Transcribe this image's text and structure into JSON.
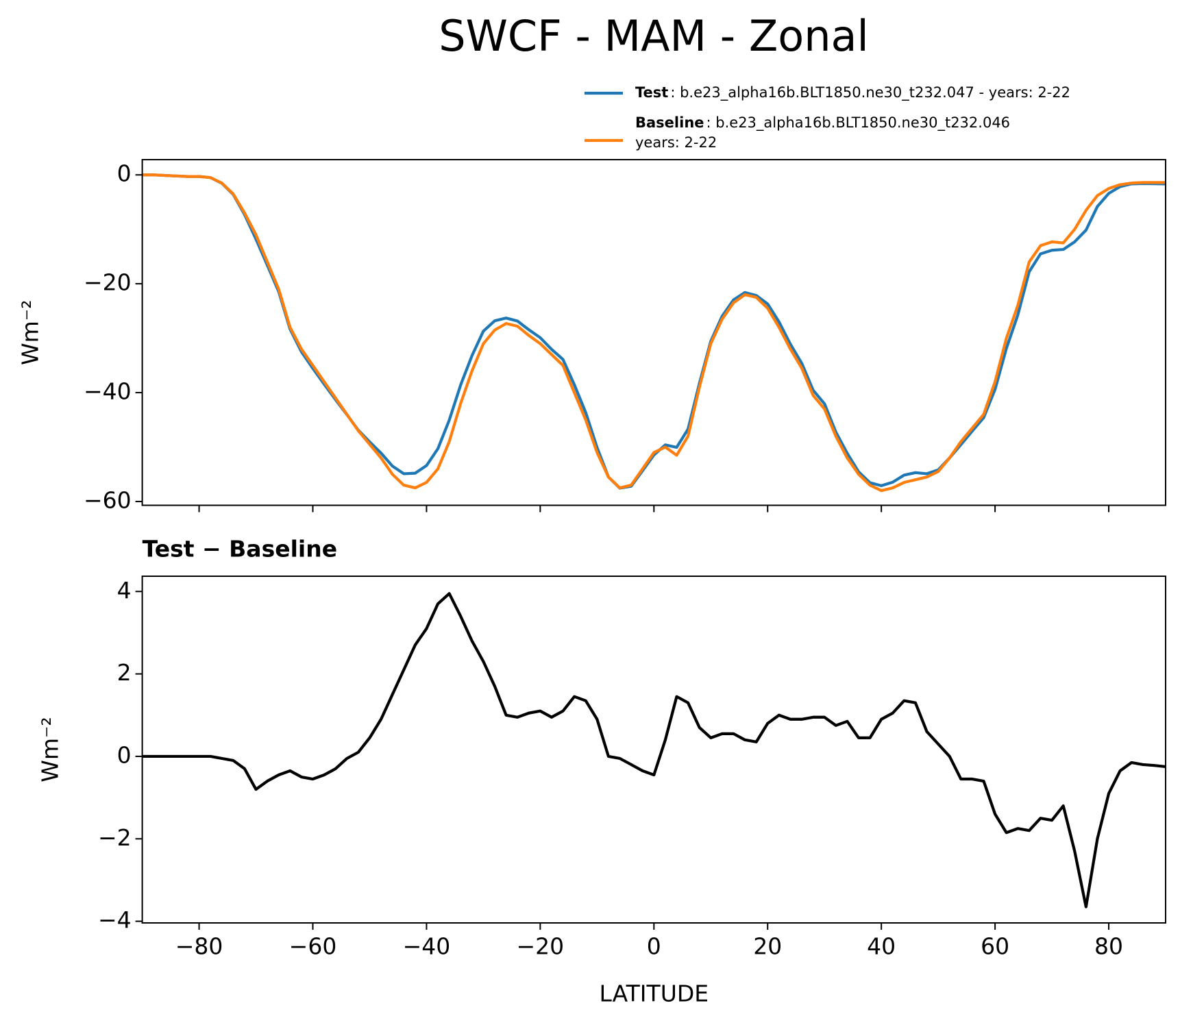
{
  "title": "SWCF - MAM - Zonal",
  "chart_data": [
    {
      "type": "line",
      "ylabel": "Wm⁻²",
      "x": [
        -90,
        -88,
        -86,
        -84,
        -82,
        -80,
        -78,
        -76,
        -74,
        -72,
        -70,
        -68,
        -66,
        -64,
        -62,
        -60,
        -58,
        -56,
        -54,
        -52,
        -50,
        -48,
        -46,
        -44,
        -42,
        -40,
        -38,
        -36,
        -34,
        -32,
        -30,
        -28,
        -26,
        -24,
        -22,
        -20,
        -18,
        -16,
        -14,
        -12,
        -10,
        -8,
        -6,
        -4,
        -2,
        0,
        2,
        4,
        6,
        8,
        10,
        12,
        14,
        16,
        18,
        20,
        22,
        24,
        26,
        28,
        30,
        32,
        34,
        36,
        38,
        40,
        42,
        44,
        46,
        48,
        50,
        52,
        54,
        56,
        58,
        60,
        62,
        64,
        66,
        68,
        70,
        72,
        74,
        76,
        78,
        80,
        82,
        84,
        86,
        88,
        90
      ],
      "series": [
        {
          "name": "Test",
          "description": [
            ": b.e23_alpha16b.BLT1850.ne30_t232.047 - years: 2-22"
          ],
          "color": "#1f77b4",
          "values": [
            0,
            0,
            -0.1,
            -0.2,
            -0.3,
            -0.3,
            -0.5,
            -1.55,
            -3.6,
            -7.3,
            -11.8,
            -16.6,
            -21.45,
            -28.35,
            -32.5,
            -35.55,
            -38.45,
            -41.3,
            -44.05,
            -46.9,
            -49.05,
            -51.1,
            -53.5,
            -54.9,
            -54.8,
            -53.4,
            -50.3,
            -45.05,
            -38.6,
            -33.2,
            -28.7,
            -26.8,
            -26.3,
            -26.85,
            -28.45,
            -29.9,
            -32.05,
            -33.9,
            -38.55,
            -43.65,
            -50.1,
            -55.5,
            -57.55,
            -57.2,
            -54.35,
            -51.45,
            -49.6,
            -50.05,
            -46.7,
            -38.3,
            -30.55,
            -25.95,
            -22.95,
            -21.6,
            -22.15,
            -23.7,
            -27,
            -31.1,
            -34.6,
            -39.55,
            -42.05,
            -47.25,
            -51.15,
            -54.55,
            -56.55,
            -57.1,
            -56.45,
            -55.15,
            -54.7,
            -54.9,
            -54.2,
            -52,
            -49.55,
            -47.05,
            -44.6,
            -39.4,
            -31.85,
            -25.75,
            -17.8,
            -14.5,
            -13.85,
            -13.7,
            -12.3,
            -10.15,
            -5.8,
            -3.4,
            -2.15,
            -1.65,
            -1.6,
            -1.62,
            -1.65
          ]
        },
        {
          "name": "Baseline",
          "description": [
            ": b.e23_alpha16b.BLT1850.ne30_t232.046",
            "years: 2-22"
          ],
          "color": "#ff7f0e",
          "values": [
            0,
            0,
            -0.1,
            -0.2,
            -0.3,
            -0.3,
            -0.5,
            -1.5,
            -3.5,
            -7,
            -11,
            -16,
            -21,
            -28,
            -32,
            -35,
            -38,
            -41,
            -44,
            -47,
            -49.5,
            -52,
            -55,
            -57,
            -57.5,
            -56.5,
            -54,
            -49,
            -42,
            -36,
            -31,
            -28.5,
            -27.3,
            -27.8,
            -29.5,
            -31,
            -33,
            -35,
            -40,
            -45,
            -51,
            -55.5,
            -57.5,
            -57,
            -54,
            -51,
            -50,
            -51.5,
            -48,
            -39,
            -31,
            -26.5,
            -23.5,
            -22,
            -22.5,
            -24.5,
            -28,
            -32,
            -35.5,
            -40.5,
            -43,
            -48,
            -52,
            -55,
            -57,
            -58,
            -57.5,
            -56.5,
            -56,
            -55.5,
            -54.5,
            -52,
            -49,
            -46.5,
            -44,
            -38,
            -30,
            -24,
            -16,
            -13,
            -12.3,
            -12.5,
            -10,
            -6.5,
            -3.8,
            -2.5,
            -1.8,
            -1.5,
            -1.4,
            -1.4,
            -1.4
          ]
        }
      ],
      "xlim": [
        -90,
        90
      ],
      "xticks": [
        -80,
        -60,
        -40,
        -20,
        0,
        20,
        40,
        60,
        80
      ],
      "ylim": [
        -60.7,
        2.8
      ],
      "yticks": [
        0,
        {
          "value": -20,
          "label": "−20"
        },
        {
          "value": -40,
          "label": "−40"
        },
        {
          "value": -60,
          "label": "−60"
        }
      ],
      "legend": "upper right",
      "grid": false
    },
    {
      "type": "line",
      "title": "Test − Baseline",
      "xlabel": "LATITUDE",
      "ylabel": "Wm⁻²",
      "x": [
        -90,
        -88,
        -86,
        -84,
        -82,
        -80,
        -78,
        -76,
        -74,
        -72,
        -70,
        -68,
        -66,
        -64,
        -62,
        -60,
        -58,
        -56,
        -54,
        -52,
        -50,
        -48,
        -46,
        -44,
        -42,
        -40,
        -38,
        -36,
        -34,
        -32,
        -30,
        -28,
        -26,
        -24,
        -22,
        -20,
        -18,
        -16,
        -14,
        -12,
        -10,
        -8,
        -6,
        -4,
        -2,
        0,
        2,
        4,
        6,
        8,
        10,
        12,
        14,
        16,
        18,
        20,
        22,
        24,
        26,
        28,
        30,
        32,
        34,
        36,
        38,
        40,
        42,
        44,
        46,
        48,
        50,
        52,
        54,
        56,
        58,
        60,
        62,
        64,
        66,
        68,
        70,
        72,
        74,
        76,
        78,
        80,
        82,
        84,
        86,
        88,
        90
      ],
      "series": [
        {
          "color": "#000000",
          "values": [
            0,
            0,
            0,
            0,
            0,
            0,
            0,
            -0.05,
            -0.1,
            -0.3,
            -0.8,
            -0.6,
            -0.45,
            -0.35,
            -0.5,
            -0.55,
            -0.45,
            -0.3,
            -0.05,
            0.1,
            0.45,
            0.9,
            1.5,
            2.1,
            2.7,
            3.1,
            3.7,
            3.95,
            3.4,
            2.8,
            2.3,
            1.7,
            1.0,
            0.95,
            1.05,
            1.1,
            0.95,
            1.1,
            1.45,
            1.35,
            0.9,
            0.0,
            -0.05,
            -0.2,
            -0.35,
            -0.45,
            0.4,
            1.45,
            1.3,
            0.7,
            0.45,
            0.55,
            0.55,
            0.4,
            0.35,
            0.8,
            1.0,
            0.9,
            0.9,
            0.95,
            0.95,
            0.75,
            0.85,
            0.45,
            0.45,
            0.9,
            1.05,
            1.35,
            1.3,
            0.6,
            0.3,
            0.0,
            -0.55,
            -0.55,
            -0.6,
            -1.4,
            -1.85,
            -1.75,
            -1.8,
            -1.5,
            -1.55,
            -1.2,
            -2.3,
            -3.65,
            -2.0,
            -0.9,
            -0.35,
            -0.15,
            -0.2,
            -0.22,
            -0.25
          ]
        }
      ],
      "xlim": [
        -90,
        90
      ],
      "xticks": [
        {
          "value": -80,
          "label": "−80"
        },
        {
          "value": -60,
          "label": "−60"
        },
        {
          "value": -40,
          "label": "−40"
        },
        {
          "value": -20,
          "label": "−20"
        },
        0,
        20,
        40,
        60,
        80
      ],
      "ylim": [
        -4.04,
        4.37
      ],
      "yticks": [
        {
          "value": -4,
          "label": "−4"
        },
        {
          "value": -2,
          "label": "−2"
        },
        0,
        2,
        4
      ],
      "grid": false
    }
  ]
}
